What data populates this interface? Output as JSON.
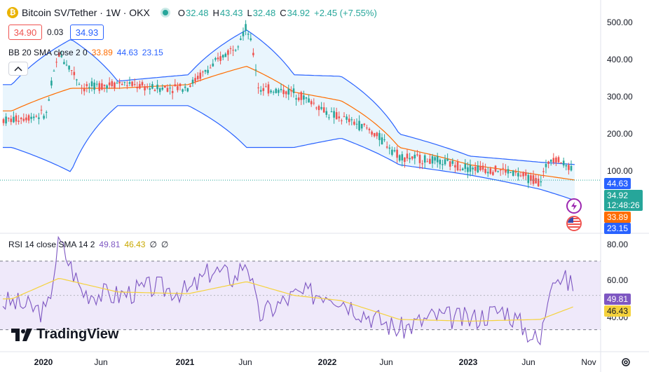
{
  "header": {
    "symbol_icon": "bitcoin-sv-coin-icon",
    "symbol_glyph": "₿",
    "title": "Bitcoin SV/Tether · 1W · OKX",
    "status_icon": "market-open-dot-icon",
    "ohlc": {
      "o_label": "O",
      "o_value": "32.48",
      "h_label": "H",
      "h_value": "43.43",
      "l_label": "L",
      "l_value": "32.48",
      "c_label": "C",
      "c_value": "34.92",
      "change": "+2.45 (+7.55%)"
    }
  },
  "order_panel": {
    "sell_price": "34.90",
    "spread": "0.03",
    "buy_price": "34.93"
  },
  "indicators": {
    "bb": {
      "label": "BB 20 SMA close 2 0",
      "basis": "33.89",
      "upper": "44.63",
      "lower": "23.15"
    },
    "rsi": {
      "label": "RSI 14 close SMA 14 2",
      "rsi": "49.81",
      "sma": "46.43",
      "extra1": "∅",
      "extra2": "∅"
    }
  },
  "price_axis": {
    "ticks": [
      "500.00",
      "400.00",
      "300.00",
      "200.00",
      "100.00"
    ],
    "upper_tag": "44.63",
    "last_price": "34.92",
    "countdown": "12:48:26",
    "basis_tag": "33.89",
    "lower_tag": "23.15"
  },
  "rsi_axis": {
    "ticks": [
      "80.00",
      "60.00",
      "40.00"
    ],
    "rsi_tag": "49.81",
    "sma_tag": "46.43"
  },
  "time_axis": {
    "labels": [
      "2020",
      "Jun",
      "2021",
      "Jun",
      "2022",
      "Jun",
      "2023",
      "Jun",
      "Nov"
    ]
  },
  "branding": {
    "logo_text": "TradingView",
    "logo_icon": "tradingview-logo-icon"
  },
  "colors": {
    "up": "#26a69a",
    "down": "#ef5350",
    "band": "#2962ff",
    "band_fill": "#e3f2fd",
    "basis": "#ff6d00",
    "rsi_line": "#7e57c2",
    "rsi_sma": "#f5d23c",
    "rsi_band_fill": "#efe9fa"
  },
  "chart_data": [
    {
      "type": "candlestick",
      "title": "Bitcoin SV/Tether · 1W · OKX",
      "y_scale": "log",
      "ylim": [
        15,
        560
      ],
      "x_range": [
        "2019-08",
        "2023-11"
      ],
      "y_ticks": [
        100,
        200,
        300,
        400,
        500
      ],
      "x_ticks": [
        "2020",
        "Jun",
        "2021",
        "Jun",
        "2022",
        "Jun",
        "2023",
        "Jun",
        "Nov"
      ],
      "series": [
        {
          "name": "BSV/USDT close",
          "x": [
            "2019-09",
            "2019-12",
            "2020-01",
            "2020-02",
            "2020-03",
            "2020-06",
            "2020-09",
            "2020-12",
            "2021-02",
            "2021-04",
            "2021-05",
            "2021-06",
            "2021-09",
            "2021-12",
            "2022-03",
            "2022-06",
            "2022-09",
            "2022-12",
            "2023-03",
            "2023-06",
            "2023-07",
            "2023-10"
          ],
          "values": [
            95,
            105,
            280,
            220,
            160,
            175,
            160,
            165,
            230,
            320,
            440,
            160,
            150,
            105,
            85,
            52,
            48,
            43,
            41,
            34,
            52,
            35
          ]
        },
        {
          "name": "BB upper",
          "x": [
            "2019-09",
            "2020-02",
            "2020-06",
            "2020-12",
            "2021-05",
            "2021-09",
            "2022-01",
            "2022-06",
            "2022-12",
            "2023-06",
            "2023-10"
          ],
          "values": [
            170,
            360,
            180,
            200,
            420,
            200,
            195,
            75,
            52,
            47,
            44.63
          ]
        },
        {
          "name": "BB basis",
          "x": [
            "2019-09",
            "2020-02",
            "2020-06",
            "2020-12",
            "2021-05",
            "2021-09",
            "2022-01",
            "2022-06",
            "2022-12",
            "2023-06",
            "2023-10"
          ],
          "values": [
            110,
            160,
            160,
            170,
            230,
            150,
            130,
            60,
            45,
            38,
            33.89
          ]
        },
        {
          "name": "BB lower",
          "x": [
            "2019-09",
            "2020-02",
            "2020-06",
            "2020-12",
            "2021-05",
            "2021-09",
            "2022-01",
            "2022-06",
            "2022-12",
            "2023-06",
            "2023-10"
          ],
          "values": [
            60,
            40,
            120,
            120,
            60,
            60,
            70,
            45,
            38,
            30,
            23.15
          ]
        }
      ]
    },
    {
      "type": "line",
      "title": "RSI 14 close SMA 14 2",
      "ylim": [
        18,
        85
      ],
      "y_ticks": [
        40,
        60,
        80
      ],
      "bands": [
        30,
        70
      ],
      "series": [
        {
          "name": "RSI",
          "x": [
            "2019-09",
            "2019-12",
            "2020-01",
            "2020-03",
            "2020-06",
            "2020-09",
            "2020-12",
            "2021-02",
            "2021-04",
            "2021-05",
            "2021-06",
            "2021-09",
            "2021-12",
            "2022-03",
            "2022-06",
            "2022-09",
            "2022-12",
            "2023-03",
            "2023-06",
            "2023-07",
            "2023-10"
          ],
          "values": [
            46,
            40,
            82,
            52,
            50,
            55,
            52,
            65,
            60,
            72,
            38,
            50,
            52,
            40,
            30,
            38,
            36,
            42,
            22,
            64,
            49.81
          ]
        },
        {
          "name": "RSI SMA",
          "x": [
            "2019-09",
            "2020-01",
            "2020-06",
            "2020-12",
            "2021-05",
            "2021-09",
            "2022-01",
            "2022-06",
            "2022-12",
            "2023-06",
            "2023-10"
          ],
          "values": [
            48,
            60,
            52,
            51,
            58,
            50,
            47,
            36,
            35,
            36,
            46.43
          ]
        }
      ]
    }
  ]
}
